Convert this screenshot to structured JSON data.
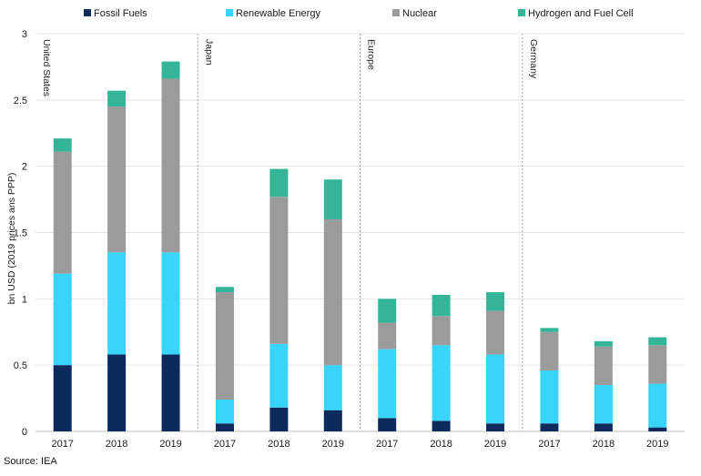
{
  "chart_data": {
    "type": "bar",
    "stacked": true,
    "title": "",
    "xlabel": "",
    "ylabel": "bn USD (2019 prices ans PPP)",
    "ylim": [
      0,
      3
    ],
    "yticks": [
      "0",
      "0.5",
      "1",
      "1.5",
      "2",
      "2.5",
      "3"
    ],
    "grid": true,
    "legend_position": "top",
    "source": "Source: IEA",
    "series": [
      {
        "name": "Fossil Fuels",
        "color": "#0d2a5c"
      },
      {
        "name": "Renewable Energy",
        "color": "#38d4fa"
      },
      {
        "name": "Nuclear",
        "color": "#9b9b9b"
      },
      {
        "name": "Hydrogen and Fuel Cell",
        "color": "#35b598"
      }
    ],
    "groups": [
      {
        "name": "United States",
        "bars": [
          {
            "year": "2017",
            "values": [
              0.5,
              0.69,
              0.92,
              0.1
            ]
          },
          {
            "year": "2018",
            "values": [
              0.58,
              0.77,
              1.1,
              0.12
            ]
          },
          {
            "year": "2019",
            "values": [
              0.58,
              0.77,
              1.31,
              0.13
            ]
          }
        ]
      },
      {
        "name": "Japan",
        "bars": [
          {
            "year": "2017",
            "values": [
              0.06,
              0.18,
              0.81,
              0.04
            ]
          },
          {
            "year": "2018",
            "values": [
              0.18,
              0.48,
              1.11,
              0.21
            ]
          },
          {
            "year": "2019",
            "values": [
              0.16,
              0.34,
              1.1,
              0.3
            ]
          }
        ]
      },
      {
        "name": "Europe",
        "bars": [
          {
            "year": "2017",
            "values": [
              0.1,
              0.52,
              0.2,
              0.18
            ]
          },
          {
            "year": "2018",
            "values": [
              0.08,
              0.57,
              0.22,
              0.16
            ]
          },
          {
            "year": "2019",
            "values": [
              0.06,
              0.52,
              0.33,
              0.14
            ]
          }
        ]
      },
      {
        "name": "Germany",
        "bars": [
          {
            "year": "2017",
            "values": [
              0.06,
              0.4,
              0.29,
              0.03
            ]
          },
          {
            "year": "2018",
            "values": [
              0.06,
              0.29,
              0.29,
              0.04
            ]
          },
          {
            "year": "2019",
            "values": [
              0.03,
              0.33,
              0.29,
              0.06
            ]
          }
        ]
      }
    ]
  }
}
